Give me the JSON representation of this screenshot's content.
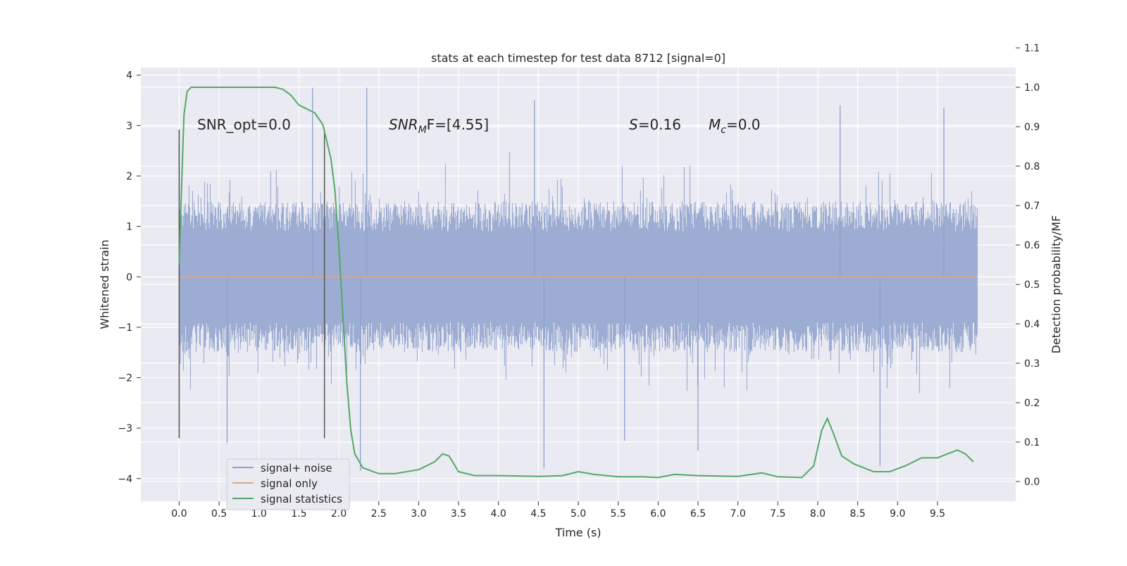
{
  "chart_data": {
    "type": "line",
    "title": "stats at each timestep for test data 8712 [signal=0]",
    "xlabel": "Time (s)",
    "ylabel": "Whitened strain",
    "ylabel_right": "Detection probability/MF",
    "xlim": [
      -0.48,
      10.48
    ],
    "ylim": [
      -4.45,
      4.15
    ],
    "ylim_right": [
      -0.05,
      1.05
    ],
    "grid": true,
    "xticks": [
      "0.0",
      "0.5",
      "1.0",
      "1.5",
      "2.0",
      "2.5",
      "3.0",
      "3.5",
      "4.0",
      "4.5",
      "5.0",
      "5.5",
      "6.0",
      "6.5",
      "7.0",
      "7.5",
      "8.0",
      "8.5",
      "9.0",
      "9.5"
    ],
    "yticks_left": [
      "4",
      "3",
      "2",
      "1",
      "0",
      "−1",
      "−2",
      "−3",
      "−4"
    ],
    "yticks_right": [
      "1.1",
      "1.0",
      "0.9",
      "0.8",
      "0.7",
      "0.6",
      "0.5",
      "0.4",
      "0.3",
      "0.2",
      "0.1",
      "0.0"
    ],
    "annotations": {
      "snr_opt": "SNR_opt=0.0",
      "snr_mf_main": "SNR",
      "snr_mf_sub": "M",
      "snr_mf_rest": "F=[4.55]",
      "s_sym": "S",
      "s_val": "=0.16",
      "mc_sym": "M",
      "mc_sub": "c",
      "mc_val": "=0.0"
    },
    "vertical_markers": [
      0.0,
      1.82
    ],
    "legend_placement": "lower-left",
    "colors": {
      "signal_noise": "#8da0cb",
      "signal_only": "#e5a287",
      "statistics": "#55a868",
      "background": "#eaeaf2",
      "marker": "#555555"
    },
    "series": [
      {
        "name": "signal+ noise",
        "type": "noise",
        "x_range": [
          0.0,
          10.0
        ],
        "note_values": "dense whitened noise, peaks approx ±3.8",
        "peaks": [
          {
            "x": 0.0,
            "y": 2.6
          },
          {
            "x": 0.6,
            "y": -3.3
          },
          {
            "x": 1.67,
            "y": 3.75
          },
          {
            "x": 2.35,
            "y": 3.75
          },
          {
            "x": 2.27,
            "y": -3.85
          },
          {
            "x": 4.45,
            "y": 3.5
          },
          {
            "x": 4.57,
            "y": -3.8
          },
          {
            "x": 6.5,
            "y": -3.45
          },
          {
            "x": 8.78,
            "y": -3.75
          },
          {
            "x": 5.58,
            "y": -3.25
          },
          {
            "x": 8.28,
            "y": 3.4
          },
          {
            "x": 9.58,
            "y": 3.35
          }
        ]
      },
      {
        "name": "signal only",
        "type": "line",
        "x": [
          0.0,
          10.0
        ],
        "y": [
          0.0,
          0.0
        ]
      },
      {
        "name": "signal statistics",
        "type": "line",
        "axis": "right",
        "x": [
          0.0,
          0.03,
          0.06,
          0.1,
          0.15,
          0.2,
          0.3,
          0.5,
          0.8,
          1.0,
          1.1,
          1.2,
          1.3,
          1.4,
          1.5,
          1.6,
          1.7,
          1.8,
          1.9,
          1.95,
          2.0,
          2.05,
          2.1,
          2.15,
          2.2,
          2.3,
          2.5,
          2.7,
          3.0,
          3.2,
          3.3,
          3.38,
          3.5,
          3.7,
          4.0,
          4.5,
          4.8,
          5.0,
          5.2,
          5.5,
          5.8,
          6.0,
          6.2,
          6.5,
          7.0,
          7.3,
          7.5,
          7.8,
          7.95,
          8.05,
          8.12,
          8.2,
          8.3,
          8.45,
          8.7,
          8.9,
          9.1,
          9.3,
          9.5,
          9.65,
          9.75,
          9.85,
          9.95
        ],
        "y": [
          0.55,
          0.75,
          0.93,
          0.99,
          1.0,
          1.0,
          1.0,
          1.0,
          1.0,
          1.0,
          1.0,
          1.0,
          0.995,
          0.98,
          0.955,
          0.945,
          0.935,
          0.905,
          0.82,
          0.74,
          0.6,
          0.42,
          0.25,
          0.13,
          0.07,
          0.035,
          0.02,
          0.02,
          0.03,
          0.05,
          0.07,
          0.065,
          0.025,
          0.015,
          0.015,
          0.013,
          0.015,
          0.025,
          0.018,
          0.012,
          0.012,
          0.01,
          0.018,
          0.015,
          0.013,
          0.022,
          0.012,
          0.01,
          0.04,
          0.13,
          0.16,
          0.12,
          0.065,
          0.045,
          0.025,
          0.025,
          0.04,
          0.06,
          0.06,
          0.072,
          0.08,
          0.07,
          0.05
        ]
      }
    ]
  }
}
